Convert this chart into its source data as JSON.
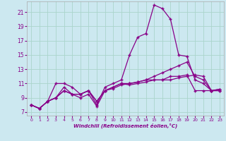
{
  "xlabel": "Windchill (Refroidissement éolien,°C)",
  "bg_color": "#cce8f0",
  "grid_color": "#aad4cc",
  "line_color": "#880088",
  "xlim": [
    -0.5,
    23.5
  ],
  "ylim": [
    6.5,
    22.5
  ],
  "yticks": [
    7,
    9,
    11,
    13,
    15,
    17,
    19,
    21
  ],
  "xticks": [
    0,
    1,
    2,
    3,
    4,
    5,
    6,
    7,
    8,
    9,
    10,
    11,
    12,
    13,
    14,
    15,
    16,
    17,
    18,
    19,
    20,
    21,
    22,
    23
  ],
  "series1_x": [
    0,
    1,
    2,
    3,
    4,
    5,
    6,
    7,
    8,
    9,
    10,
    11,
    12,
    13,
    14,
    15,
    16,
    17,
    18,
    19,
    20,
    21,
    22,
    23
  ],
  "series1_y": [
    8.0,
    7.5,
    8.5,
    11.0,
    11.0,
    10.5,
    9.5,
    10.0,
    8.0,
    10.5,
    11.0,
    11.5,
    15.0,
    17.5,
    18.0,
    22.0,
    21.5,
    20.0,
    15.0,
    14.8,
    11.5,
    11.0,
    10.0,
    10.2
  ],
  "series2_x": [
    0,
    1,
    2,
    3,
    4,
    5,
    6,
    7,
    8,
    9,
    10,
    11,
    12,
    13,
    14,
    15,
    16,
    17,
    18,
    19,
    20,
    21,
    22,
    23
  ],
  "series2_y": [
    8.0,
    7.5,
    8.5,
    9.0,
    10.0,
    9.5,
    9.0,
    9.5,
    7.8,
    10.0,
    10.3,
    10.8,
    11.0,
    11.2,
    11.5,
    12.0,
    12.5,
    13.0,
    13.5,
    14.0,
    12.0,
    11.5,
    10.0,
    10.2
  ],
  "series3_x": [
    0,
    1,
    2,
    3,
    4,
    5,
    6,
    7,
    8,
    9,
    10,
    11,
    12,
    13,
    14,
    15,
    16,
    17,
    18,
    19,
    20,
    21,
    22,
    23
  ],
  "series3_y": [
    8.0,
    7.5,
    8.5,
    9.0,
    10.0,
    9.5,
    9.5,
    10.0,
    8.5,
    10.0,
    10.5,
    11.0,
    11.0,
    11.2,
    11.5,
    11.5,
    11.5,
    12.0,
    12.0,
    12.2,
    10.0,
    10.0,
    10.0,
    10.0
  ],
  "series4_x": [
    0,
    1,
    2,
    3,
    4,
    5,
    6,
    7,
    8,
    9,
    10,
    11,
    12,
    13,
    14,
    15,
    16,
    17,
    18,
    19,
    20,
    21,
    22,
    23
  ],
  "series4_y": [
    8.0,
    7.5,
    8.5,
    9.0,
    10.5,
    9.5,
    9.5,
    10.0,
    8.5,
    10.0,
    10.5,
    11.0,
    10.8,
    11.0,
    11.2,
    11.5,
    11.5,
    11.5,
    11.8,
    12.0,
    12.2,
    12.0,
    10.0,
    10.0
  ]
}
